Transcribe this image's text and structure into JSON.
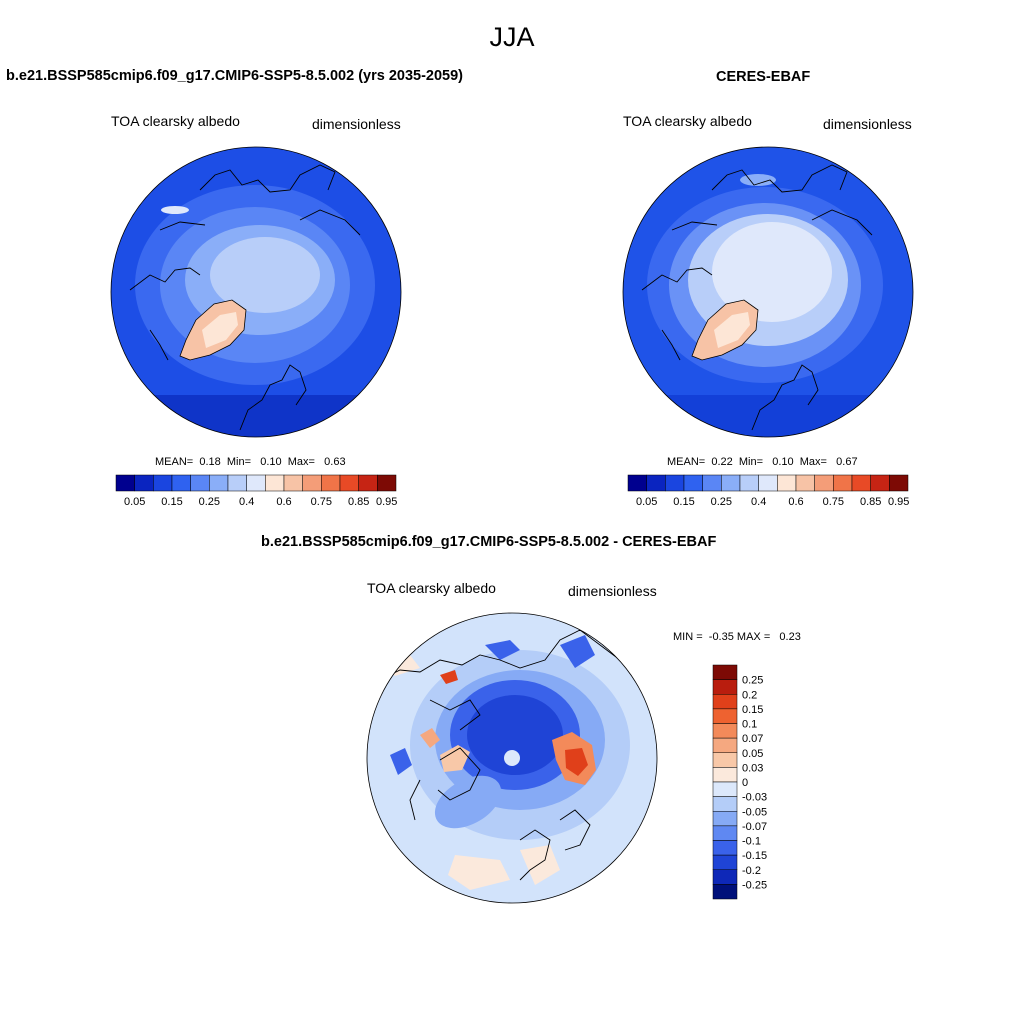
{
  "figure": {
    "season": "JJA",
    "left_panel": {
      "title": "b.e21.BSSP585cmip6.f09_g17.CMIP6-SSP5-8.5.002 (yrs 2035-2059)",
      "variable": "TOA clearsky albedo",
      "units": "dimensionless",
      "stats": {
        "mean_label": "MEAN=",
        "mean": "0.18",
        "min_label": "Min=",
        "min": "0.10",
        "max_label": "Max=",
        "max": "0.63"
      }
    },
    "right_panel": {
      "title": "CERES-EBAF",
      "variable": "TOA clearsky albedo",
      "units": "dimensionless",
      "stats": {
        "mean_label": "MEAN=",
        "mean": "0.22",
        "min_label": "Min=",
        "min": "0.10",
        "max_label": "Max=",
        "max": "0.67"
      }
    },
    "diff_panel": {
      "title": "b.e21.BSSP585cmip6.f09_g17.CMIP6-SSP5-8.5.002 - CERES-EBAF",
      "variable": "TOA clearsky albedo",
      "units": "dimensionless",
      "stats": {
        "min_label": "MIN =",
        "min": "-0.35",
        "max_label": "MAX =",
        "max": "0.23"
      }
    }
  },
  "colors": {
    "albedo_levels": [
      "#00008f",
      "#0a24c0",
      "#1a45e0",
      "#2f62f0",
      "#5a86f5",
      "#8aaef8",
      "#b8cef9",
      "#dfe8fb",
      "#fde6d6",
      "#f7c3a6",
      "#f49d78",
      "#f07448",
      "#e84a26",
      "#c62414",
      "#7d0a05"
    ],
    "diff_levels": [
      "#7d0a05",
      "#b91d0e",
      "#e0401a",
      "#ee6230",
      "#f38a5a",
      "#f5a880",
      "#f8c8a8",
      "#fbe9dc",
      "#dce8fb",
      "#b4cdf8",
      "#86aaf5",
      "#5f88f2",
      "#3a62ea",
      "#1f44d6",
      "#0e28b8",
      "#00107a"
    ],
    "ocean_model": "#1d4ee6",
    "ocean_obs": "#1f53e8",
    "diff_background": "#d2e3fb"
  },
  "chart_data": [
    {
      "type": "heatmap",
      "name": "model",
      "title": "b.e21.BSSP585cmip6.f09_g17.CMIP6-SSP5-8.5.002 (yrs 2035-2059)",
      "projection": "north-polar-stereographic",
      "colorbar_orientation": "horizontal",
      "colorbar_ticks": [
        "0.05",
        "0.15",
        "0.25",
        "0.4",
        "0.6",
        "0.75",
        "0.85",
        "0.95"
      ]
    },
    {
      "type": "heatmap",
      "name": "observations",
      "title": "CERES-EBAF",
      "projection": "north-polar-stereographic",
      "colorbar_orientation": "horizontal",
      "colorbar_ticks": [
        "0.05",
        "0.15",
        "0.25",
        "0.4",
        "0.6",
        "0.75",
        "0.85",
        "0.95"
      ]
    },
    {
      "type": "heatmap",
      "name": "difference",
      "title": "b.e21.BSSP585cmip6.f09_g17.CMIP6-SSP5-8.5.002 - CERES-EBAF",
      "projection": "north-polar-stereographic",
      "colorbar_orientation": "vertical",
      "colorbar_ticks": [
        "0.25",
        "0.2",
        "0.15",
        "0.1",
        "0.07",
        "0.05",
        "0.03",
        "0",
        "-0.03",
        "-0.05",
        "-0.07",
        "-0.1",
        "-0.15",
        "-0.2",
        "-0.25"
      ]
    }
  ]
}
